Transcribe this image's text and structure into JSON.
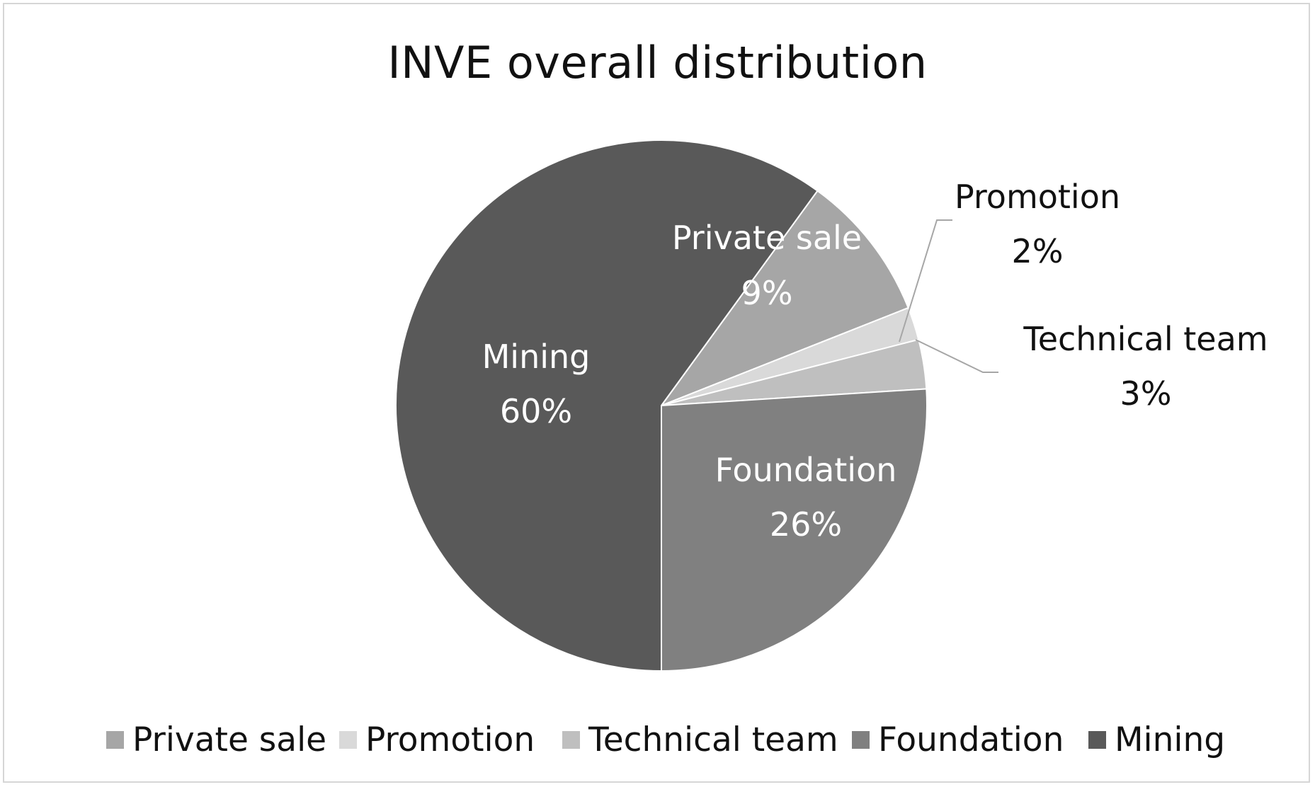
{
  "chart_data": {
    "type": "pie",
    "title": "INVE overall distribution",
    "slices": [
      {
        "label": "Private sale",
        "percent_label": "9%",
        "value": 9,
        "color": "#a6a6a6",
        "label_color": "#ffffff",
        "label_inside": true
      },
      {
        "label": "Promotion",
        "percent_label": "2%",
        "value": 2,
        "color": "#d9d9d9",
        "label_color": "#111111",
        "label_inside": false
      },
      {
        "label": "Technical team",
        "percent_label": "3%",
        "value": 3,
        "color": "#bfbfbf",
        "label_color": "#111111",
        "label_inside": false
      },
      {
        "label": "Foundation",
        "percent_label": "26%",
        "value": 26,
        "color": "#808080",
        "label_color": "#ffffff",
        "label_inside": true
      },
      {
        "label": "Mining",
        "percent_label": "60%",
        "value": 60,
        "color": "#595959",
        "label_color": "#ffffff",
        "label_inside": true
      }
    ],
    "legend_position": "bottom",
    "legend": [
      "Private sale",
      "Promotion",
      "Technical team",
      "Foundation",
      "Mining"
    ]
  }
}
